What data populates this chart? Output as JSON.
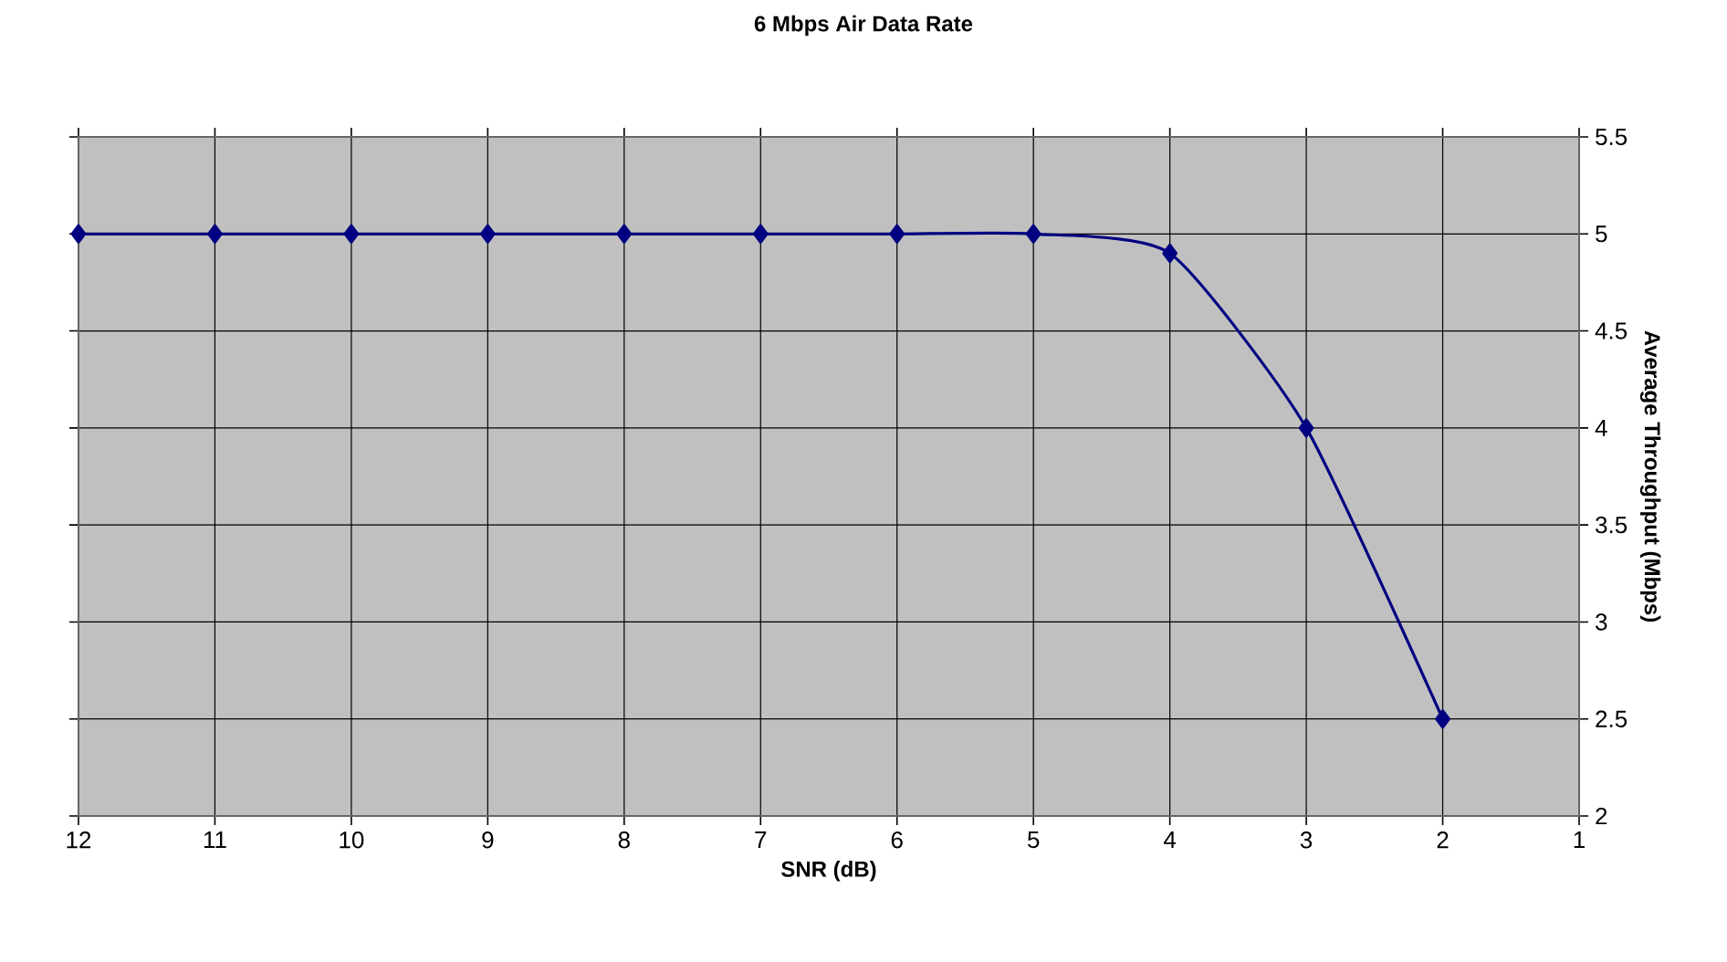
{
  "chart_data": {
    "type": "line",
    "title": "6 Mbps Air Data Rate",
    "xlabel": "SNR (dB)",
    "ylabel": "Average Throughput (Mbps)",
    "x": [
      12,
      11,
      10,
      9,
      8,
      7,
      6,
      5,
      4,
      3,
      2
    ],
    "values": [
      5,
      5,
      5,
      5,
      5,
      5,
      5,
      5,
      4.9,
      4,
      2.5
    ],
    "color": "#000080",
    "marker": "diamond",
    "line_style": "solid",
    "grid": true,
    "xlim": [
      12,
      1
    ],
    "xticks": [
      12,
      11,
      10,
      9,
      8,
      7,
      6,
      5,
      4,
      3,
      2,
      1
    ],
    "ylim": [
      2,
      5.5
    ],
    "yticks": [
      2,
      2.5,
      3,
      3.5,
      4,
      4.5,
      5,
      5.5
    ]
  }
}
